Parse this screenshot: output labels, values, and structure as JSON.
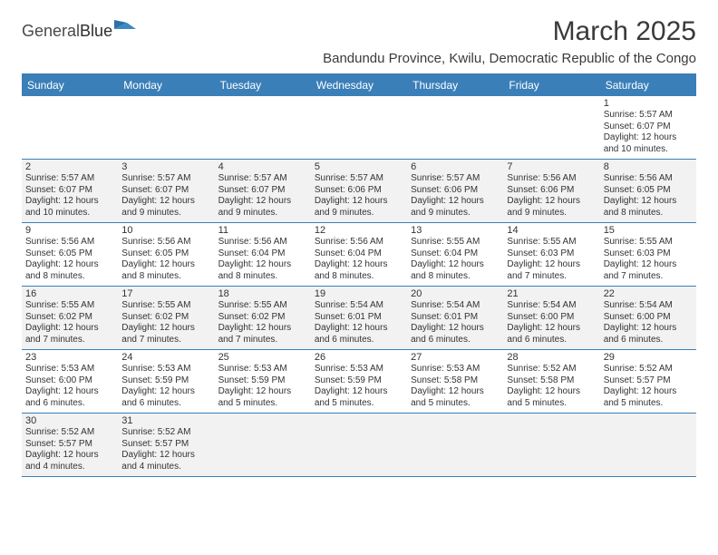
{
  "brand": {
    "part1": "General",
    "part2": "Blue"
  },
  "title": "March 2025",
  "location": "Bandundu Province, Kwilu, Democratic Republic of the Congo",
  "colors": {
    "header_bg": "#3b7fb8",
    "header_text": "#ffffff",
    "border": "#3b7fb8",
    "shaded_bg": "#f2f2f2",
    "plain_bg": "#ffffff",
    "text": "#333333",
    "title_text": "#3a3a3a"
  },
  "typography": {
    "title_fontsize": 30,
    "location_fontsize": 15,
    "dow_fontsize": 12,
    "daynum_fontsize": 11,
    "body_fontsize": 10
  },
  "daysOfWeek": [
    "Sunday",
    "Monday",
    "Tuesday",
    "Wednesday",
    "Thursday",
    "Friday",
    "Saturday"
  ],
  "weeks": [
    [
      {
        "num": "",
        "lines": [],
        "shaded": false
      },
      {
        "num": "",
        "lines": [],
        "shaded": false
      },
      {
        "num": "",
        "lines": [],
        "shaded": false
      },
      {
        "num": "",
        "lines": [],
        "shaded": false
      },
      {
        "num": "",
        "lines": [],
        "shaded": false
      },
      {
        "num": "",
        "lines": [],
        "shaded": false
      },
      {
        "num": "1",
        "lines": [
          "Sunrise: 5:57 AM",
          "Sunset: 6:07 PM",
          "Daylight: 12 hours",
          "and 10 minutes."
        ],
        "shaded": false
      }
    ],
    [
      {
        "num": "2",
        "lines": [
          "Sunrise: 5:57 AM",
          "Sunset: 6:07 PM",
          "Daylight: 12 hours",
          "and 10 minutes."
        ],
        "shaded": true
      },
      {
        "num": "3",
        "lines": [
          "Sunrise: 5:57 AM",
          "Sunset: 6:07 PM",
          "Daylight: 12 hours",
          "and 9 minutes."
        ],
        "shaded": true
      },
      {
        "num": "4",
        "lines": [
          "Sunrise: 5:57 AM",
          "Sunset: 6:07 PM",
          "Daylight: 12 hours",
          "and 9 minutes."
        ],
        "shaded": true
      },
      {
        "num": "5",
        "lines": [
          "Sunrise: 5:57 AM",
          "Sunset: 6:06 PM",
          "Daylight: 12 hours",
          "and 9 minutes."
        ],
        "shaded": true
      },
      {
        "num": "6",
        "lines": [
          "Sunrise: 5:57 AM",
          "Sunset: 6:06 PM",
          "Daylight: 12 hours",
          "and 9 minutes."
        ],
        "shaded": true
      },
      {
        "num": "7",
        "lines": [
          "Sunrise: 5:56 AM",
          "Sunset: 6:06 PM",
          "Daylight: 12 hours",
          "and 9 minutes."
        ],
        "shaded": true
      },
      {
        "num": "8",
        "lines": [
          "Sunrise: 5:56 AM",
          "Sunset: 6:05 PM",
          "Daylight: 12 hours",
          "and 8 minutes."
        ],
        "shaded": true
      }
    ],
    [
      {
        "num": "9",
        "lines": [
          "Sunrise: 5:56 AM",
          "Sunset: 6:05 PM",
          "Daylight: 12 hours",
          "and 8 minutes."
        ],
        "shaded": false
      },
      {
        "num": "10",
        "lines": [
          "Sunrise: 5:56 AM",
          "Sunset: 6:05 PM",
          "Daylight: 12 hours",
          "and 8 minutes."
        ],
        "shaded": false
      },
      {
        "num": "11",
        "lines": [
          "Sunrise: 5:56 AM",
          "Sunset: 6:04 PM",
          "Daylight: 12 hours",
          "and 8 minutes."
        ],
        "shaded": false
      },
      {
        "num": "12",
        "lines": [
          "Sunrise: 5:56 AM",
          "Sunset: 6:04 PM",
          "Daylight: 12 hours",
          "and 8 minutes."
        ],
        "shaded": false
      },
      {
        "num": "13",
        "lines": [
          "Sunrise: 5:55 AM",
          "Sunset: 6:04 PM",
          "Daylight: 12 hours",
          "and 8 minutes."
        ],
        "shaded": false
      },
      {
        "num": "14",
        "lines": [
          "Sunrise: 5:55 AM",
          "Sunset: 6:03 PM",
          "Daylight: 12 hours",
          "and 7 minutes."
        ],
        "shaded": false
      },
      {
        "num": "15",
        "lines": [
          "Sunrise: 5:55 AM",
          "Sunset: 6:03 PM",
          "Daylight: 12 hours",
          "and 7 minutes."
        ],
        "shaded": false
      }
    ],
    [
      {
        "num": "16",
        "lines": [
          "Sunrise: 5:55 AM",
          "Sunset: 6:02 PM",
          "Daylight: 12 hours",
          "and 7 minutes."
        ],
        "shaded": true
      },
      {
        "num": "17",
        "lines": [
          "Sunrise: 5:55 AM",
          "Sunset: 6:02 PM",
          "Daylight: 12 hours",
          "and 7 minutes."
        ],
        "shaded": true
      },
      {
        "num": "18",
        "lines": [
          "Sunrise: 5:55 AM",
          "Sunset: 6:02 PM",
          "Daylight: 12 hours",
          "and 7 minutes."
        ],
        "shaded": true
      },
      {
        "num": "19",
        "lines": [
          "Sunrise: 5:54 AM",
          "Sunset: 6:01 PM",
          "Daylight: 12 hours",
          "and 6 minutes."
        ],
        "shaded": true
      },
      {
        "num": "20",
        "lines": [
          "Sunrise: 5:54 AM",
          "Sunset: 6:01 PM",
          "Daylight: 12 hours",
          "and 6 minutes."
        ],
        "shaded": true
      },
      {
        "num": "21",
        "lines": [
          "Sunrise: 5:54 AM",
          "Sunset: 6:00 PM",
          "Daylight: 12 hours",
          "and 6 minutes."
        ],
        "shaded": true
      },
      {
        "num": "22",
        "lines": [
          "Sunrise: 5:54 AM",
          "Sunset: 6:00 PM",
          "Daylight: 12 hours",
          "and 6 minutes."
        ],
        "shaded": true
      }
    ],
    [
      {
        "num": "23",
        "lines": [
          "Sunrise: 5:53 AM",
          "Sunset: 6:00 PM",
          "Daylight: 12 hours",
          "and 6 minutes."
        ],
        "shaded": false
      },
      {
        "num": "24",
        "lines": [
          "Sunrise: 5:53 AM",
          "Sunset: 5:59 PM",
          "Daylight: 12 hours",
          "and 6 minutes."
        ],
        "shaded": false
      },
      {
        "num": "25",
        "lines": [
          "Sunrise: 5:53 AM",
          "Sunset: 5:59 PM",
          "Daylight: 12 hours",
          "and 5 minutes."
        ],
        "shaded": false
      },
      {
        "num": "26",
        "lines": [
          "Sunrise: 5:53 AM",
          "Sunset: 5:59 PM",
          "Daylight: 12 hours",
          "and 5 minutes."
        ],
        "shaded": false
      },
      {
        "num": "27",
        "lines": [
          "Sunrise: 5:53 AM",
          "Sunset: 5:58 PM",
          "Daylight: 12 hours",
          "and 5 minutes."
        ],
        "shaded": false
      },
      {
        "num": "28",
        "lines": [
          "Sunrise: 5:52 AM",
          "Sunset: 5:58 PM",
          "Daylight: 12 hours",
          "and 5 minutes."
        ],
        "shaded": false
      },
      {
        "num": "29",
        "lines": [
          "Sunrise: 5:52 AM",
          "Sunset: 5:57 PM",
          "Daylight: 12 hours",
          "and 5 minutes."
        ],
        "shaded": false
      }
    ],
    [
      {
        "num": "30",
        "lines": [
          "Sunrise: 5:52 AM",
          "Sunset: 5:57 PM",
          "Daylight: 12 hours",
          "and 4 minutes."
        ],
        "shaded": true
      },
      {
        "num": "31",
        "lines": [
          "Sunrise: 5:52 AM",
          "Sunset: 5:57 PM",
          "Daylight: 12 hours",
          "and 4 minutes."
        ],
        "shaded": true
      },
      {
        "num": "",
        "lines": [],
        "shaded": true
      },
      {
        "num": "",
        "lines": [],
        "shaded": true
      },
      {
        "num": "",
        "lines": [],
        "shaded": true
      },
      {
        "num": "",
        "lines": [],
        "shaded": true
      },
      {
        "num": "",
        "lines": [],
        "shaded": true
      }
    ]
  ]
}
